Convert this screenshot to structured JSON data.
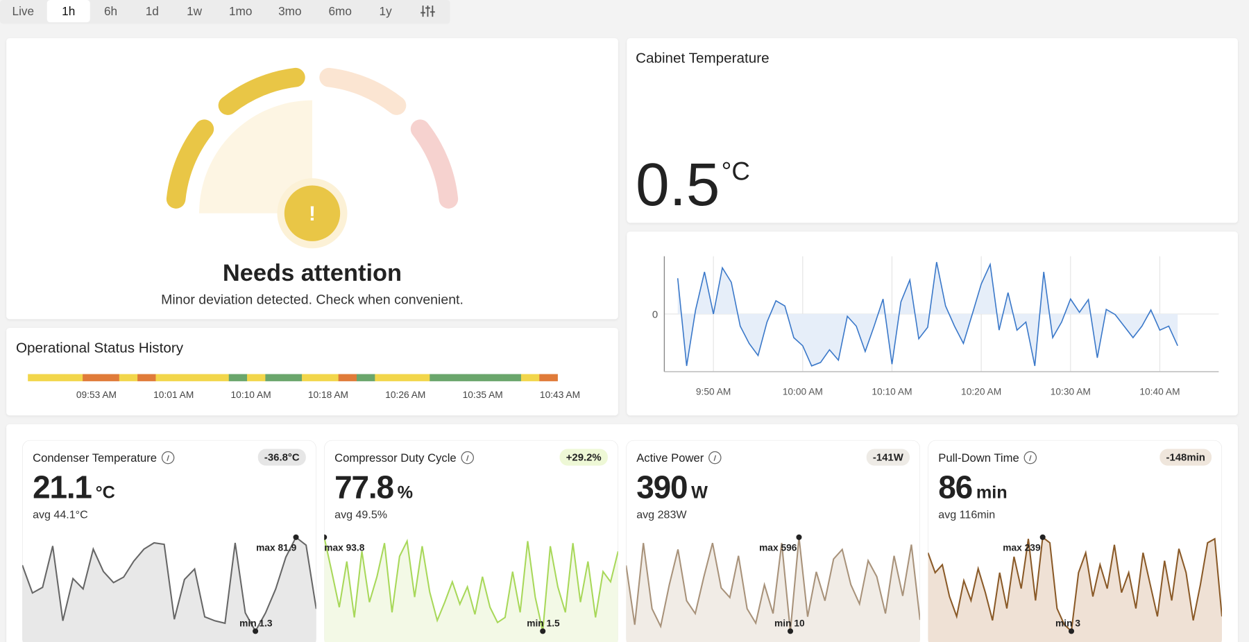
{
  "tabs": [
    "Live",
    "1h",
    "6h",
    "1d",
    "1w",
    "1mo",
    "3mo",
    "6mo",
    "1y"
  ],
  "active_tab": "1h",
  "status": {
    "icon": "!",
    "title": "Needs attention",
    "message": "Minor deviation detected. Check when convenient."
  },
  "status_history": {
    "title": "Operational Status History",
    "segments": [
      "#f2d64b",
      "#f2d64b",
      "#f2d64b",
      "#e07b39",
      "#e07b39",
      "#f2d64b",
      "#e07b39",
      "#f2d64b",
      "#f2d64b",
      "#f2d64b",
      "#f2d64b",
      "#6aa66c",
      "#f2d64b",
      "#6aa66c",
      "#6aa66c",
      "#f2d64b",
      "#f2d64b",
      "#e07b39",
      "#6aa66c",
      "#f2d64b",
      "#f2d64b",
      "#f2d64b",
      "#6aa66c",
      "#6aa66c",
      "#6aa66c",
      "#6aa66c",
      "#6aa66c",
      "#f2d64b",
      "#e07b39"
    ],
    "labels": [
      "09:53 AM",
      "10:01 AM",
      "10:10 AM",
      "10:18 AM",
      "10:26 AM",
      "10:35 AM",
      "10:43 AM"
    ]
  },
  "cabinet": {
    "title": "Cabinet Temperature",
    "value": "0.5",
    "unit": "°C"
  },
  "cards": [
    {
      "title": "Condenser Temperature",
      "delta": "-36.8°C",
      "value": "21.1",
      "unit": "°C",
      "avg": "avg 44.1°C",
      "delta_color": "#e6e6e6"
    },
    {
      "title": "Compressor Duty Cycle",
      "delta": "+29.2%",
      "value": "77.8",
      "unit": "%",
      "avg": "avg 49.5%",
      "delta_color": "#eef8d6"
    },
    {
      "title": "Active Power",
      "delta": "-141W",
      "value": "390",
      "unit": "W",
      "avg": "avg 283W",
      "delta_color": "#eeebe6"
    },
    {
      "title": "Pull-Down Time",
      "delta": "-148min",
      "value": "86",
      "unit": "min",
      "avg": "avg 116min",
      "delta_color": "#efe6dc"
    }
  ],
  "chart_data": [
    {
      "type": "line",
      "color": "#3a78c9",
      "fill": "#e6eef9",
      "x": [
        586,
        587,
        588,
        589,
        590,
        591,
        592,
        593,
        594,
        595,
        596,
        597,
        598,
        599,
        600,
        601,
        602,
        603,
        604,
        605,
        606,
        607,
        608,
        609,
        610,
        611,
        612,
        613,
        614,
        615,
        616,
        617,
        618,
        619,
        620,
        621,
        622,
        623,
        624,
        625,
        626,
        627,
        628,
        629,
        630,
        631,
        632,
        633,
        634,
        635,
        636,
        637,
        638,
        639,
        640,
        641,
        642
      ],
      "values": [
        0.62,
        -0.9,
        0.07,
        0.73,
        0,
        0.8,
        0.55,
        -0.21,
        -0.51,
        -0.72,
        -0.14,
        0.23,
        0.14,
        -0.41,
        -0.55,
        -0.9,
        -0.84,
        -0.62,
        -0.8,
        -0.04,
        -0.21,
        -0.65,
        -0.21,
        0.26,
        -0.87,
        0.21,
        0.59,
        -0.43,
        -0.23,
        0.9,
        0.14,
        -0.21,
        -0.51,
        0,
        0.52,
        0.86,
        -0.28,
        0.37,
        -0.28,
        -0.14,
        -0.9,
        0.73,
        -0.41,
        -0.14,
        0.26,
        0.03,
        0.25,
        -0.76,
        0.08,
        -0.01,
        -0.21,
        -0.41,
        -0.21,
        0.07,
        -0.28,
        -0.21,
        -0.55
      ],
      "xlim": [
        584.5,
        646.6
      ],
      "ylim": [
        -1,
        1
      ],
      "yticks": [
        0
      ],
      "xticks": [
        {
          "value": 590,
          "label": "9:50 AM"
        },
        {
          "value": 600,
          "label": "10:00 AM"
        },
        {
          "value": 610,
          "label": "10:10 AM"
        },
        {
          "value": 620,
          "label": "10:20 AM"
        },
        {
          "value": 630,
          "label": "10:30 AM"
        },
        {
          "value": 640,
          "label": "10:40 AM"
        }
      ],
      "grid": true
    },
    {
      "type": "sparkline",
      "color": "#666666",
      "fill": "#e8e8e8",
      "values": [
        58.0,
        34.1,
        38.9,
        74.4,
        10.2,
        46.4,
        37.5,
        71.7,
        52.5,
        43.0,
        47.7,
        61.4,
        71.7,
        77.1,
        75.8,
        11.5,
        45.7,
        54.6,
        13.6,
        10.2,
        8.1,
        77.1,
        17.0,
        1.3,
        17.0,
        37.5,
        64.8,
        81.9,
        75.1,
        20.4
      ],
      "annotations": {
        "max": "max 81.9",
        "min": "min 1.3"
      }
    },
    {
      "type": "sparkline",
      "color": "#a8d85a",
      "fill": "#f3f9e6",
      "values": [
        93.8,
        60,
        25,
        70,
        15,
        80,
        30,
        55,
        88,
        20,
        75,
        90,
        35,
        85,
        40,
        12,
        30,
        50,
        28,
        45,
        18,
        55,
        25,
        10,
        15,
        60,
        20,
        90,
        35,
        1.5,
        85,
        45,
        20,
        88,
        30,
        70,
        15,
        60,
        50,
        80
      ],
      "annotations": {
        "max": "max 93.8",
        "min": "min 1.5"
      }
    },
    {
      "type": "sparkline",
      "color": "#a8927a",
      "fill": "#f1ece6",
      "values": [
        420,
        50,
        560,
        150,
        40,
        300,
        520,
        200,
        120,
        350,
        560,
        280,
        220,
        480,
        150,
        60,
        300,
        120,
        560,
        10,
        596,
        100,
        380,
        200,
        460,
        520,
        300,
        180,
        450,
        350,
        120,
        480,
        230,
        550,
        80
      ],
      "annotations": {
        "max": "max 596",
        "min": "min 10"
      }
    },
    {
      "type": "sparkline",
      "color": "#8a5a28",
      "fill": "#efe1d5",
      "values": [
        200,
        150,
        170,
        90,
        40,
        130,
        80,
        160,
        100,
        30,
        150,
        60,
        190,
        110,
        235,
        80,
        239,
        225,
        60,
        20,
        3,
        150,
        200,
        90,
        170,
        110,
        220,
        100,
        150,
        60,
        200,
        120,
        40,
        180,
        80,
        210,
        150,
        30,
        120,
        225,
        235,
        40
      ],
      "annotations": {
        "max": "max 239",
        "min": "min 3"
      }
    }
  ]
}
